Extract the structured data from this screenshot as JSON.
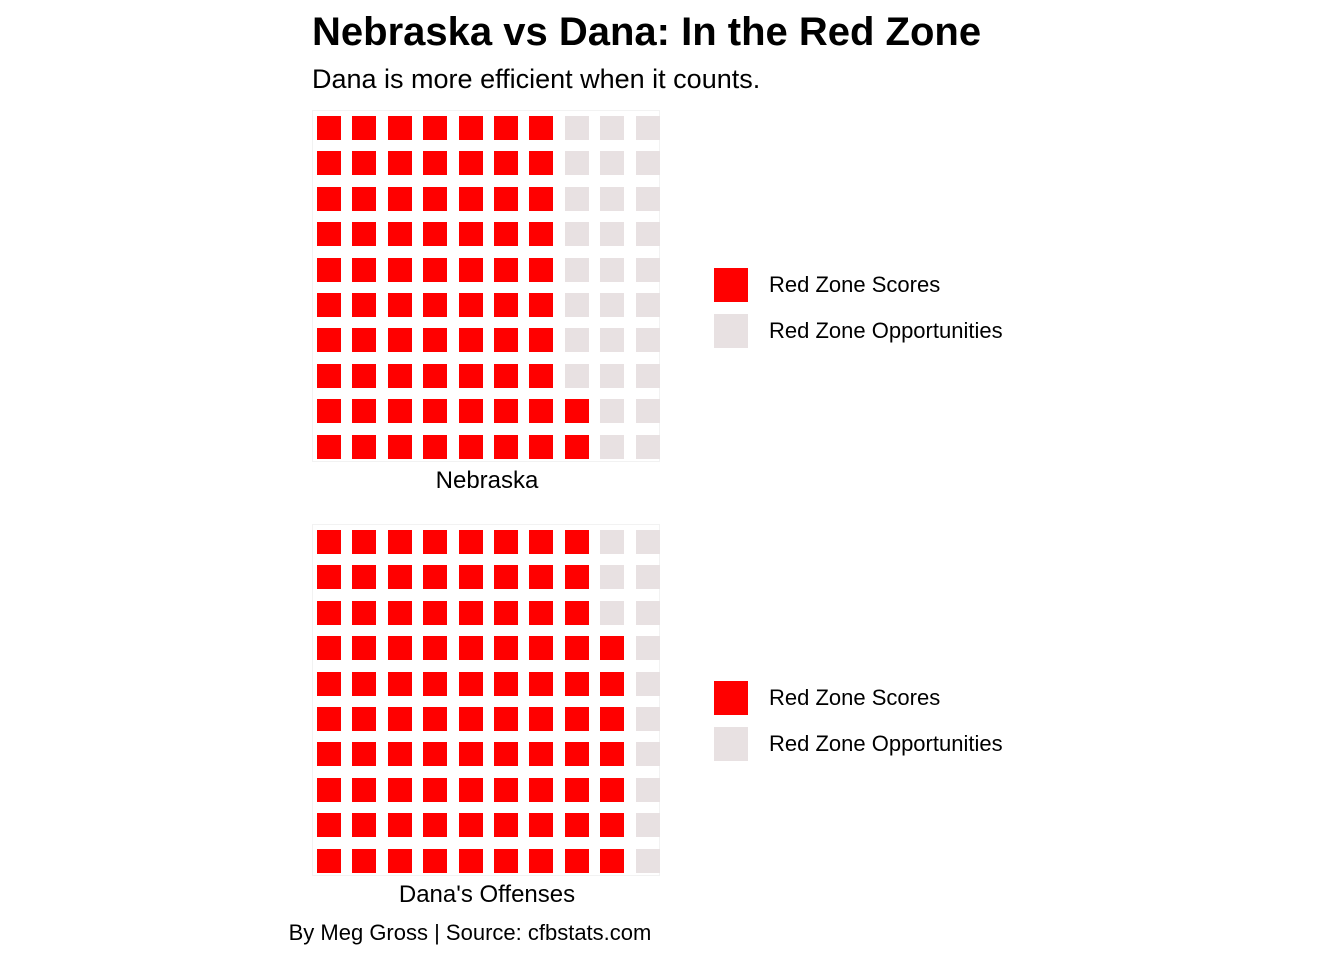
{
  "title": "Nebraska vs Dana: In the Red Zone",
  "subtitle": "Dana is more efficient when it counts.",
  "caption": "By Meg Gross | Source: cfbstats.com",
  "colors": {
    "score": "#ff0000",
    "opportunity": "#e8e1e2"
  },
  "chart_data": [
    {
      "type": "waffle",
      "panel_label": "Nebraska",
      "grid": {
        "rows": 10,
        "cols": 10
      },
      "fill_order": "column-major from bottom-left",
      "series": [
        {
          "name": "Red Zone Scores",
          "value": 72,
          "color": "#ff0000"
        },
        {
          "name": "Red Zone Opportunities",
          "value": 28,
          "color": "#e8e1e2"
        }
      ],
      "legend": [
        "Red Zone Scores",
        "Red Zone Opportunities"
      ]
    },
    {
      "type": "waffle",
      "panel_label": "Dana's Offenses",
      "grid": {
        "rows": 10,
        "cols": 10
      },
      "fill_order": "column-major from bottom-left",
      "series": [
        {
          "name": "Red Zone Scores",
          "value": 87,
          "color": "#ff0000"
        },
        {
          "name": "Red Zone Opportunities",
          "value": 13,
          "color": "#e8e1e2"
        }
      ],
      "legend": [
        "Red Zone Scores",
        "Red Zone Opportunities"
      ]
    }
  ]
}
